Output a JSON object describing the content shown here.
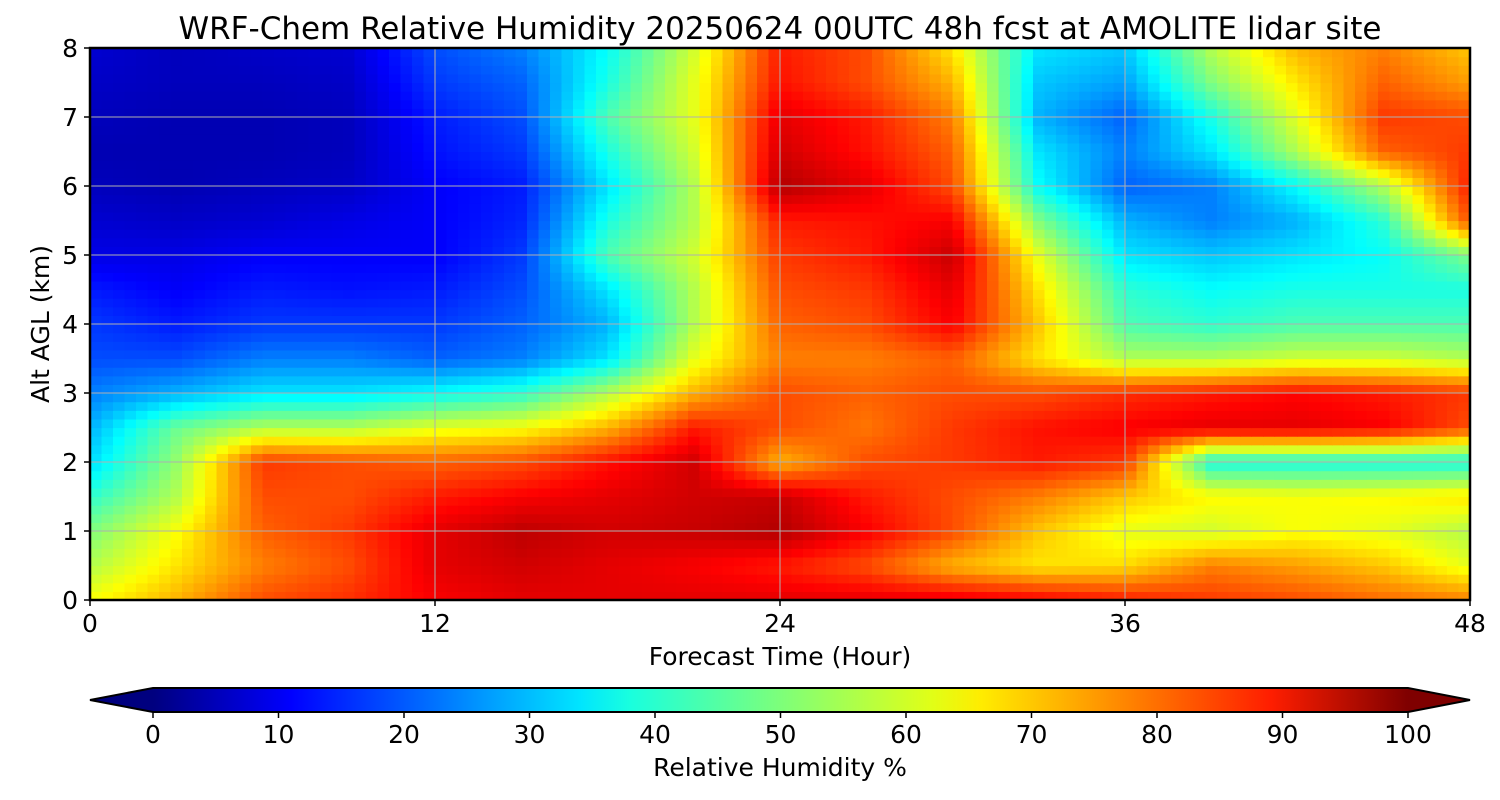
{
  "chart_data": {
    "type": "heatmap",
    "title": "WRF-Chem Relative Humidity 20250624 00UTC 48h fcst at AMOLITE lidar site",
    "xlabel": "Forecast Time (Hour)",
    "ylabel": "Alt AGL (km)",
    "xlim": [
      0,
      48
    ],
    "ylim": [
      0,
      8
    ],
    "x_ticks": [
      "0",
      "12",
      "24",
      "36",
      "48"
    ],
    "y_ticks": [
      "0",
      "1",
      "2",
      "3",
      "4",
      "5",
      "6",
      "7",
      "8"
    ],
    "grid": true,
    "colorbar": {
      "label": "Relative Humidity %",
      "range": [
        0,
        100
      ],
      "ticks": [
        "0",
        "10",
        "20",
        "30",
        "40",
        "50",
        "60",
        "70",
        "80",
        "90",
        "100"
      ],
      "extend": "both",
      "colormap": "jet"
    },
    "x": [
      0,
      3,
      6,
      9,
      12,
      15,
      18,
      21,
      24,
      27,
      30,
      33,
      36,
      39,
      42,
      45,
      48
    ],
    "y": [
      0,
      0.5,
      1,
      1.5,
      2,
      2.5,
      3,
      3.5,
      4,
      4.5,
      5,
      5.5,
      6,
      6.5,
      7,
      7.5,
      8
    ],
    "z": [
      [
        62,
        70,
        80,
        83,
        88,
        90,
        90,
        90,
        90,
        90,
        90,
        88,
        85,
        82,
        80,
        77,
        75
      ],
      [
        55,
        65,
        75,
        80,
        90,
        92,
        90,
        88,
        85,
        80,
        70,
        65,
        66,
        75,
        72,
        68,
        60
      ],
      [
        50,
        62,
        78,
        82,
        90,
        94,
        92,
        93,
        95,
        88,
        80,
        68,
        60,
        58,
        62,
        60,
        55
      ],
      [
        42,
        55,
        80,
        80,
        85,
        88,
        90,
        92,
        93,
        85,
        80,
        75,
        68,
        63,
        62,
        63,
        65
      ],
      [
        34,
        52,
        82,
        80,
        78,
        80,
        86,
        92,
        70,
        80,
        82,
        85,
        82,
        40,
        40,
        40,
        40
      ],
      [
        30,
        48,
        55,
        55,
        60,
        62,
        70,
        85,
        80,
        76,
        82,
        86,
        88,
        90,
        90,
        88,
        80
      ],
      [
        25,
        30,
        35,
        35,
        38,
        42,
        55,
        70,
        80,
        78,
        80,
        80,
        83,
        85,
        87,
        85,
        82
      ],
      [
        20,
        20,
        25,
        25,
        22,
        25,
        35,
        60,
        75,
        75,
        78,
        65,
        55,
        55,
        58,
        58,
        55
      ],
      [
        18,
        15,
        18,
        18,
        18,
        22,
        30,
        55,
        78,
        80,
        88,
        68,
        45,
        42,
        45,
        45,
        45
      ],
      [
        15,
        12,
        15,
        14,
        15,
        20,
        35,
        55,
        80,
        82,
        90,
        65,
        42,
        38,
        40,
        40,
        40
      ],
      [
        10,
        10,
        12,
        12,
        12,
        18,
        45,
        58,
        82,
        85,
        93,
        60,
        35,
        32,
        35,
        38,
        50
      ],
      [
        8,
        7,
        8,
        10,
        12,
        16,
        40,
        55,
        85,
        86,
        88,
        50,
        30,
        25,
        30,
        42,
        80
      ],
      [
        6,
        5,
        6,
        7,
        12,
        15,
        35,
        55,
        95,
        90,
        80,
        38,
        22,
        25,
        38,
        55,
        85
      ],
      [
        5,
        5,
        5,
        6,
        14,
        18,
        40,
        58,
        92,
        86,
        78,
        35,
        25,
        35,
        55,
        78,
        82
      ],
      [
        6,
        5,
        5,
        6,
        15,
        20,
        45,
        60,
        90,
        85,
        75,
        30,
        22,
        40,
        60,
        82,
        80
      ],
      [
        7,
        6,
        6,
        7,
        18,
        22,
        40,
        60,
        86,
        80,
        70,
        32,
        28,
        50,
        65,
        78,
        72
      ],
      [
        8,
        6,
        7,
        8,
        20,
        25,
        38,
        58,
        85,
        80,
        65,
        35,
        32,
        55,
        70,
        75,
        68
      ]
    ]
  }
}
